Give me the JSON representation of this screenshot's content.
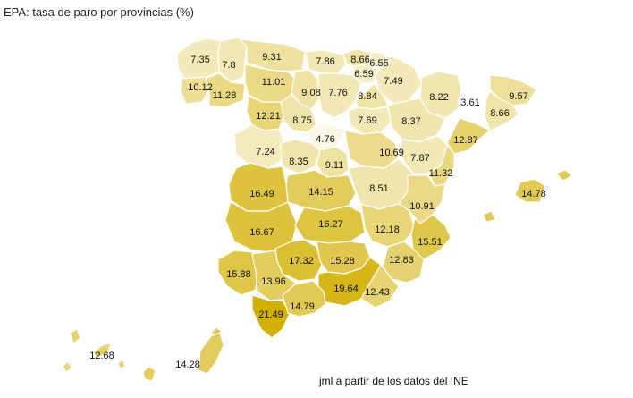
{
  "title": "EPA: tasa de paro por provincias (%)",
  "credit": "jml a partir de los datos del INE",
  "color_scale": {
    "min": 3.61,
    "max": 21.49,
    "low_color": "#ffffff",
    "high_color": "#d2b000"
  },
  "provinces": [
    {
      "id": "a-coruna",
      "value": "7.35"
    },
    {
      "id": "lugo",
      "value": "7.8"
    },
    {
      "id": "asturias",
      "value": "9.31"
    },
    {
      "id": "cantabria",
      "value": "7.86"
    },
    {
      "id": "bizkaia",
      "value": "8.66"
    },
    {
      "id": "gipuzkoa",
      "value": "6.55"
    },
    {
      "id": "alava",
      "value": "6.59"
    },
    {
      "id": "navarra",
      "value": "7.49"
    },
    {
      "id": "pontevedra",
      "value": "10.12"
    },
    {
      "id": "ourense",
      "value": "11.28"
    },
    {
      "id": "leon",
      "value": "11.01"
    },
    {
      "id": "palencia",
      "value": "9.08"
    },
    {
      "id": "burgos",
      "value": "7.76"
    },
    {
      "id": "la-rioja",
      "value": "8.84"
    },
    {
      "id": "huesca",
      "value": "8.22"
    },
    {
      "id": "lleida",
      "value": "3.61"
    },
    {
      "id": "girona",
      "value": "9.57"
    },
    {
      "id": "barcelona",
      "value": "8.66"
    },
    {
      "id": "zamora",
      "value": "12.21"
    },
    {
      "id": "valladolid",
      "value": "8.75"
    },
    {
      "id": "soria",
      "value": "7.69"
    },
    {
      "id": "zaragoza",
      "value": "8.37"
    },
    {
      "id": "tarragona",
      "value": "12.87"
    },
    {
      "id": "salamanca",
      "value": "7.24"
    },
    {
      "id": "segovia",
      "value": "4.76"
    },
    {
      "id": "avila",
      "value": "8.35"
    },
    {
      "id": "madrid",
      "value": "9.11"
    },
    {
      "id": "guadalajara",
      "value": "10.69"
    },
    {
      "id": "teruel",
      "value": "7.87"
    },
    {
      "id": "castellon",
      "value": "11.32"
    },
    {
      "id": "caceres",
      "value": "16.49"
    },
    {
      "id": "toledo",
      "value": "14.15"
    },
    {
      "id": "cuenca",
      "value": "8.51"
    },
    {
      "id": "valencia",
      "value": "10.91"
    },
    {
      "id": "baleares",
      "value": "14.78"
    },
    {
      "id": "badajoz",
      "value": "16.67"
    },
    {
      "id": "ciudad-real",
      "value": "16.27"
    },
    {
      "id": "albacete",
      "value": "12.18"
    },
    {
      "id": "alicante",
      "value": "15.51"
    },
    {
      "id": "cordoba",
      "value": "17.32"
    },
    {
      "id": "jaen",
      "value": "15.28"
    },
    {
      "id": "murcia",
      "value": "12.83"
    },
    {
      "id": "huelva",
      "value": "15.88"
    },
    {
      "id": "sevilla",
      "value": "13.96"
    },
    {
      "id": "granada",
      "value": "19.64"
    },
    {
      "id": "almeria",
      "value": "12.43"
    },
    {
      "id": "cadiz",
      "value": "21.49"
    },
    {
      "id": "malaga",
      "value": "14.79"
    },
    {
      "id": "santa-cruz-de-tenerife",
      "value": "12.68"
    },
    {
      "id": "las-palmas",
      "value": "14.28"
    }
  ]
}
